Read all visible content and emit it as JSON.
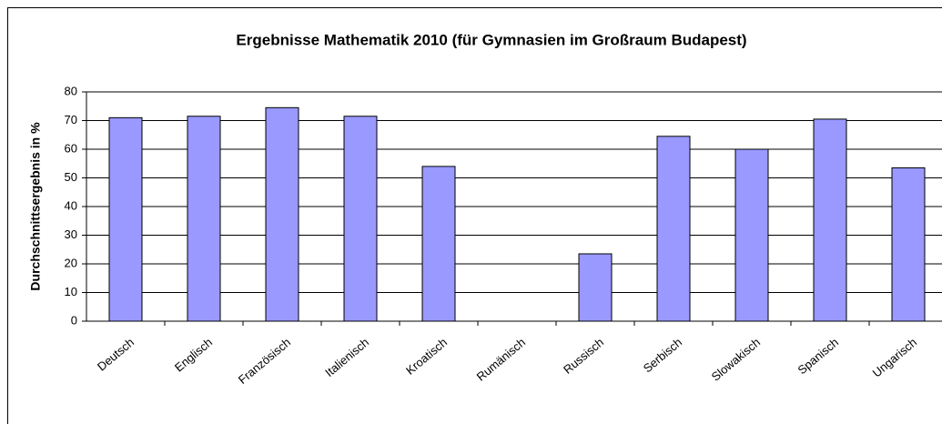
{
  "chart_data": {
    "type": "bar",
    "title": "Ergebnisse Mathematik 2010 (für Gymnasien im Großraum Budapest)",
    "y_label": "Durchschnittsergebnis in %",
    "categories": [
      "Deutsch",
      "Englisch",
      "Französisch",
      "Italienisch",
      "Kroatisch",
      "Rumänisch",
      "Russisch",
      "Serbisch",
      "Slowakisch",
      "Spanisch",
      "Ungarisch"
    ],
    "values": [
      71,
      71.5,
      74.5,
      71.5,
      54,
      null,
      23.5,
      64.5,
      60,
      70.5,
      53.5
    ],
    "color": "#9999ff",
    "ylim": [
      0,
      80
    ],
    "yticks": [
      0,
      10,
      20,
      30,
      40,
      50,
      60,
      70,
      80
    ],
    "grid": true
  }
}
